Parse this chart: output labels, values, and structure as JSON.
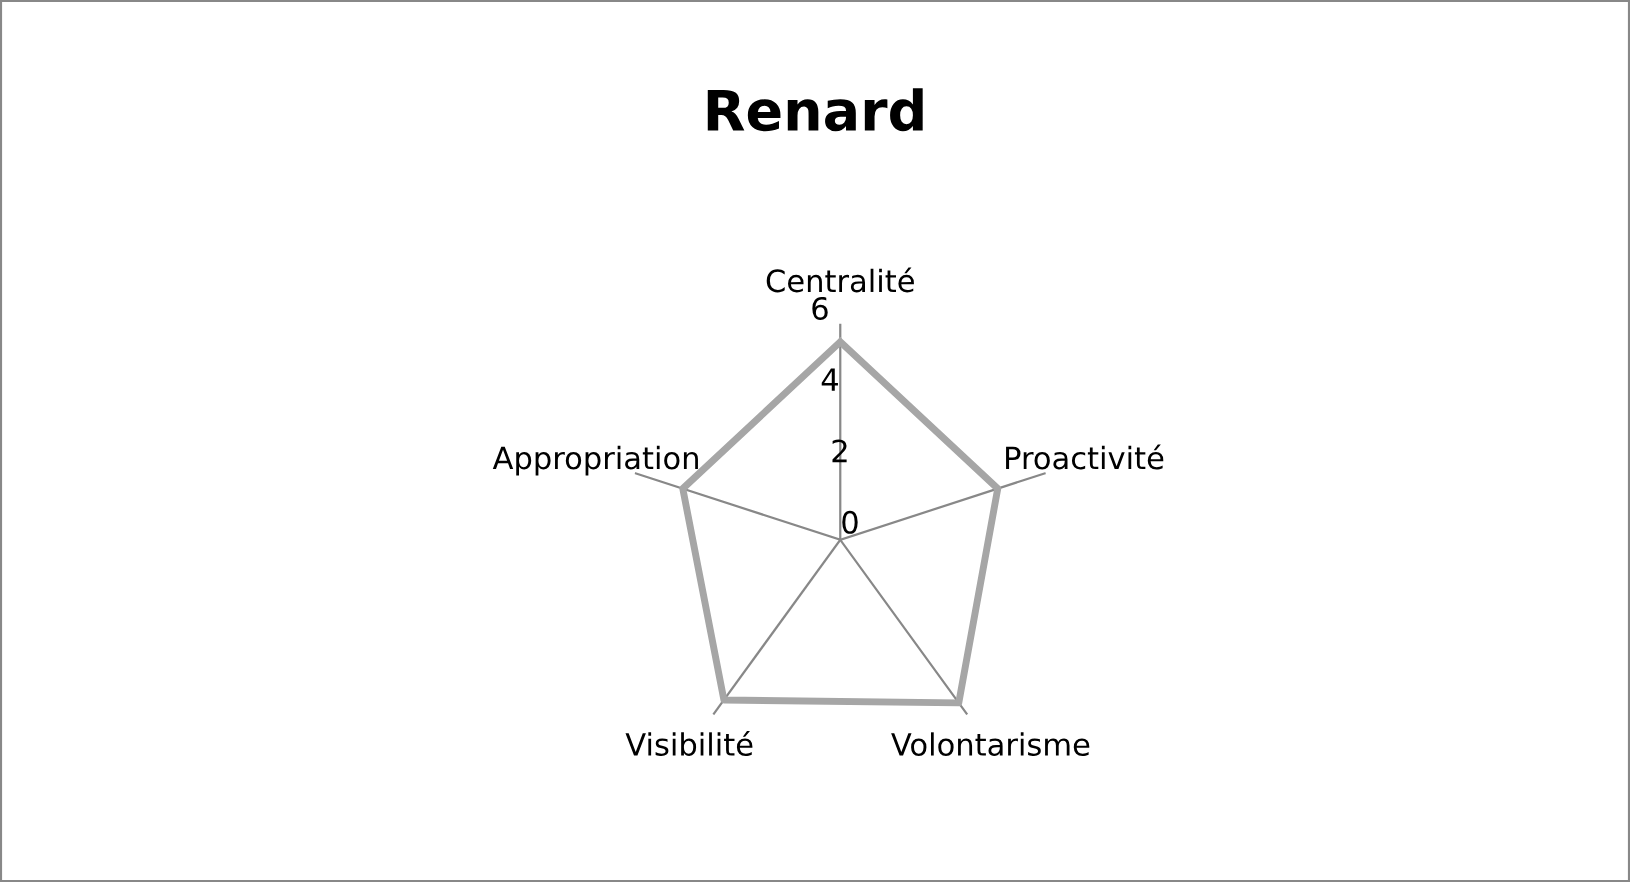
{
  "chart_data": {
    "type": "radar",
    "title": "Renard",
    "categories": [
      "Centralité",
      "Proactivité",
      "Volontarisme",
      "Visibilité",
      "Appropriation"
    ],
    "series": [
      {
        "color": "#a6a6a6",
        "values": [
          5.5,
          4.6,
          5.6,
          5.5,
          4.6
        ]
      }
    ],
    "ylim": [
      0,
      6
    ],
    "yticks": [
      0,
      2,
      4,
      6
    ],
    "grid": "x",
    "marker": "none",
    "line_style": "solid"
  }
}
